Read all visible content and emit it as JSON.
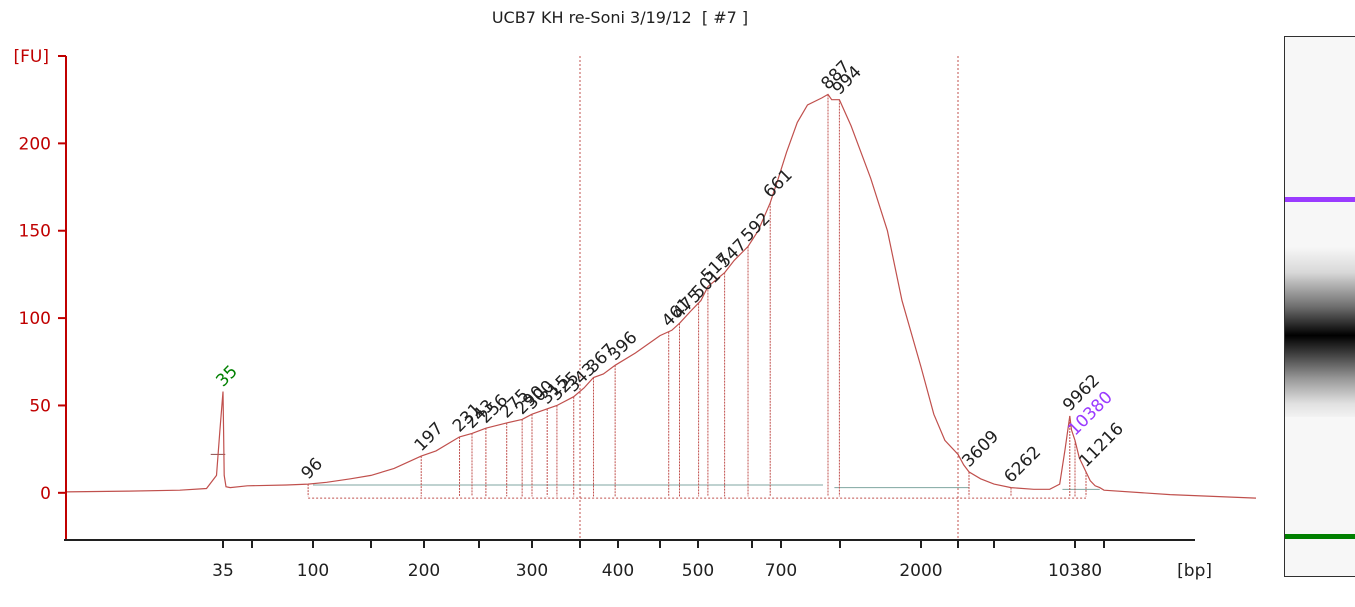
{
  "chart_data": {
    "type": "line",
    "title": "UCB7 KH re-Soni 3/19/12  [ #7 ]",
    "ylabel": "[FU]",
    "xlabel": "[bp]",
    "yticks": [
      0,
      50,
      100,
      150,
      200
    ],
    "ylim": [
      -27,
      250
    ],
    "xticks_labeled": [
      {
        "label": "35",
        "x": 35
      },
      {
        "label": "100",
        "x": 100
      },
      {
        "label": "200",
        "x": 200
      },
      {
        "label": "300",
        "x": 300
      },
      {
        "label": "400",
        "x": 400
      },
      {
        "label": "500",
        "x": 500
      },
      {
        "label": "700",
        "x": 700
      },
      {
        "label": "2000",
        "x": 2000
      },
      {
        "label": "10380",
        "x": 10380
      }
    ],
    "xticks_minor": [
      60,
      150,
      250,
      350,
      450,
      600,
      1000,
      3000,
      5000,
      15000
    ],
    "x_axis_scale": "sizing ladder (piecewise log)",
    "x_calibration": [
      [
        20,
        0
      ],
      [
        35,
        157
      ],
      [
        60,
        186
      ],
      [
        100,
        247
      ],
      [
        150,
        305
      ],
      [
        200,
        358
      ],
      [
        250,
        413
      ],
      [
        300,
        466
      ],
      [
        350,
        514
      ],
      [
        400,
        552
      ],
      [
        450,
        594
      ],
      [
        500,
        632
      ],
      [
        600,
        686
      ],
      [
        700,
        715
      ],
      [
        887,
        762
      ],
      [
        1000,
        774
      ],
      [
        2000,
        855
      ],
      [
        3000,
        892
      ],
      [
        3609,
        903
      ],
      [
        5000,
        928
      ],
      [
        6262,
        945
      ],
      [
        10380,
        1009
      ],
      [
        11216,
        1020
      ],
      [
        15000,
        1038
      ],
      [
        20000,
        1190
      ]
    ],
    "series": [
      {
        "points": [
          [
            20,
            0.5
          ],
          [
            25,
            1
          ],
          [
            30,
            1.5
          ],
          [
            33,
            2.5
          ],
          [
            34.2,
            10
          ],
          [
            34.6,
            35
          ],
          [
            35,
            58
          ],
          [
            35.4,
            35
          ],
          [
            35.8,
            10
          ],
          [
            37,
            3.5
          ],
          [
            40,
            3
          ],
          [
            55,
            4
          ],
          [
            80,
            4.5
          ],
          [
            96,
            5
          ],
          [
            110,
            6
          ],
          [
            130,
            8
          ],
          [
            150,
            10
          ],
          [
            170,
            14
          ],
          [
            197,
            21
          ],
          [
            210,
            24
          ],
          [
            231,
            32
          ],
          [
            243,
            34
          ],
          [
            256,
            37
          ],
          [
            275,
            40
          ],
          [
            290,
            42
          ],
          [
            300,
            45
          ],
          [
            325,
            50
          ],
          [
            343,
            55
          ],
          [
            355,
            60
          ],
          [
            367,
            66
          ],
          [
            380,
            68
          ],
          [
            396,
            73
          ],
          [
            420,
            80
          ],
          [
            450,
            90
          ],
          [
            465,
            93
          ],
          [
            475,
            97
          ],
          [
            490,
            104
          ],
          [
            505,
            110
          ],
          [
            517,
            118
          ],
          [
            547,
            126
          ],
          [
            565,
            133
          ],
          [
            592,
            141
          ],
          [
            620,
            150
          ],
          [
            661,
            166
          ],
          [
            690,
            180
          ],
          [
            720,
            195
          ],
          [
            760,
            212
          ],
          [
            800,
            222
          ],
          [
            860,
            226
          ],
          [
            887,
            228
          ],
          [
            920,
            225
          ],
          [
            994,
            225
          ],
          [
            1100,
            210
          ],
          [
            1300,
            180
          ],
          [
            1500,
            150
          ],
          [
            1700,
            110
          ],
          [
            2000,
            72
          ],
          [
            2300,
            45
          ],
          [
            2600,
            30
          ],
          [
            3000,
            22
          ],
          [
            3300,
            16
          ],
          [
            3609,
            12
          ],
          [
            4200,
            8
          ],
          [
            5000,
            5
          ],
          [
            6262,
            3
          ],
          [
            7500,
            2
          ],
          [
            8500,
            2
          ],
          [
            9200,
            5
          ],
          [
            9600,
            25
          ],
          [
            9962,
            44
          ],
          [
            10100,
            36
          ],
          [
            10380,
            30
          ],
          [
            10700,
            20
          ],
          [
            11216,
            12
          ],
          [
            12000,
            7
          ],
          [
            13000,
            4
          ],
          [
            14000,
            3
          ],
          [
            15000,
            1.5
          ],
          [
            17000,
            -1
          ],
          [
            20000,
            -3
          ]
        ]
      }
    ],
    "peaks": [
      {
        "label": "35",
        "x": 35,
        "color": "#008000"
      },
      {
        "label": "96",
        "x": 96
      },
      {
        "label": "197",
        "x": 197
      },
      {
        "label": "231",
        "x": 231
      },
      {
        "label": "243",
        "x": 243
      },
      {
        "label": "256",
        "x": 256
      },
      {
        "label": "275",
        "x": 275
      },
      {
        "label": "290",
        "x": 290
      },
      {
        "label": "300",
        "x": 300
      },
      {
        "label": "315",
        "x": 315
      },
      {
        "label": "325",
        "x": 325
      },
      {
        "label": "343",
        "x": 343
      },
      {
        "label": "367",
        "x": 367
      },
      {
        "label": "396",
        "x": 396
      },
      {
        "label": "461",
        "x": 461
      },
      {
        "label": "475",
        "x": 475
      },
      {
        "label": "501",
        "x": 501
      },
      {
        "label": "517",
        "x": 517
      },
      {
        "label": "547",
        "x": 547
      },
      {
        "label": "592",
        "x": 592
      },
      {
        "label": "661",
        "x": 661
      },
      {
        "label": "887",
        "x": 887
      },
      {
        "label": "994",
        "x": 994
      },
      {
        "label": "3609",
        "x": 3609
      },
      {
        "label": "6262",
        "x": 6262
      },
      {
        "label": "9962",
        "x": 9962
      },
      {
        "label": "10380",
        "x": 10380,
        "color": "#9a3bff"
      },
      {
        "label": "11216",
        "x": 11216
      }
    ],
    "region_markers_x": [
      350,
      3000
    ],
    "baseline_color": "#7fa6a0",
    "line_color": "#c0504d",
    "axis_color": "#c00000",
    "lower_marker_color": "#008000",
    "upper_marker_color": "#9a3bff"
  }
}
